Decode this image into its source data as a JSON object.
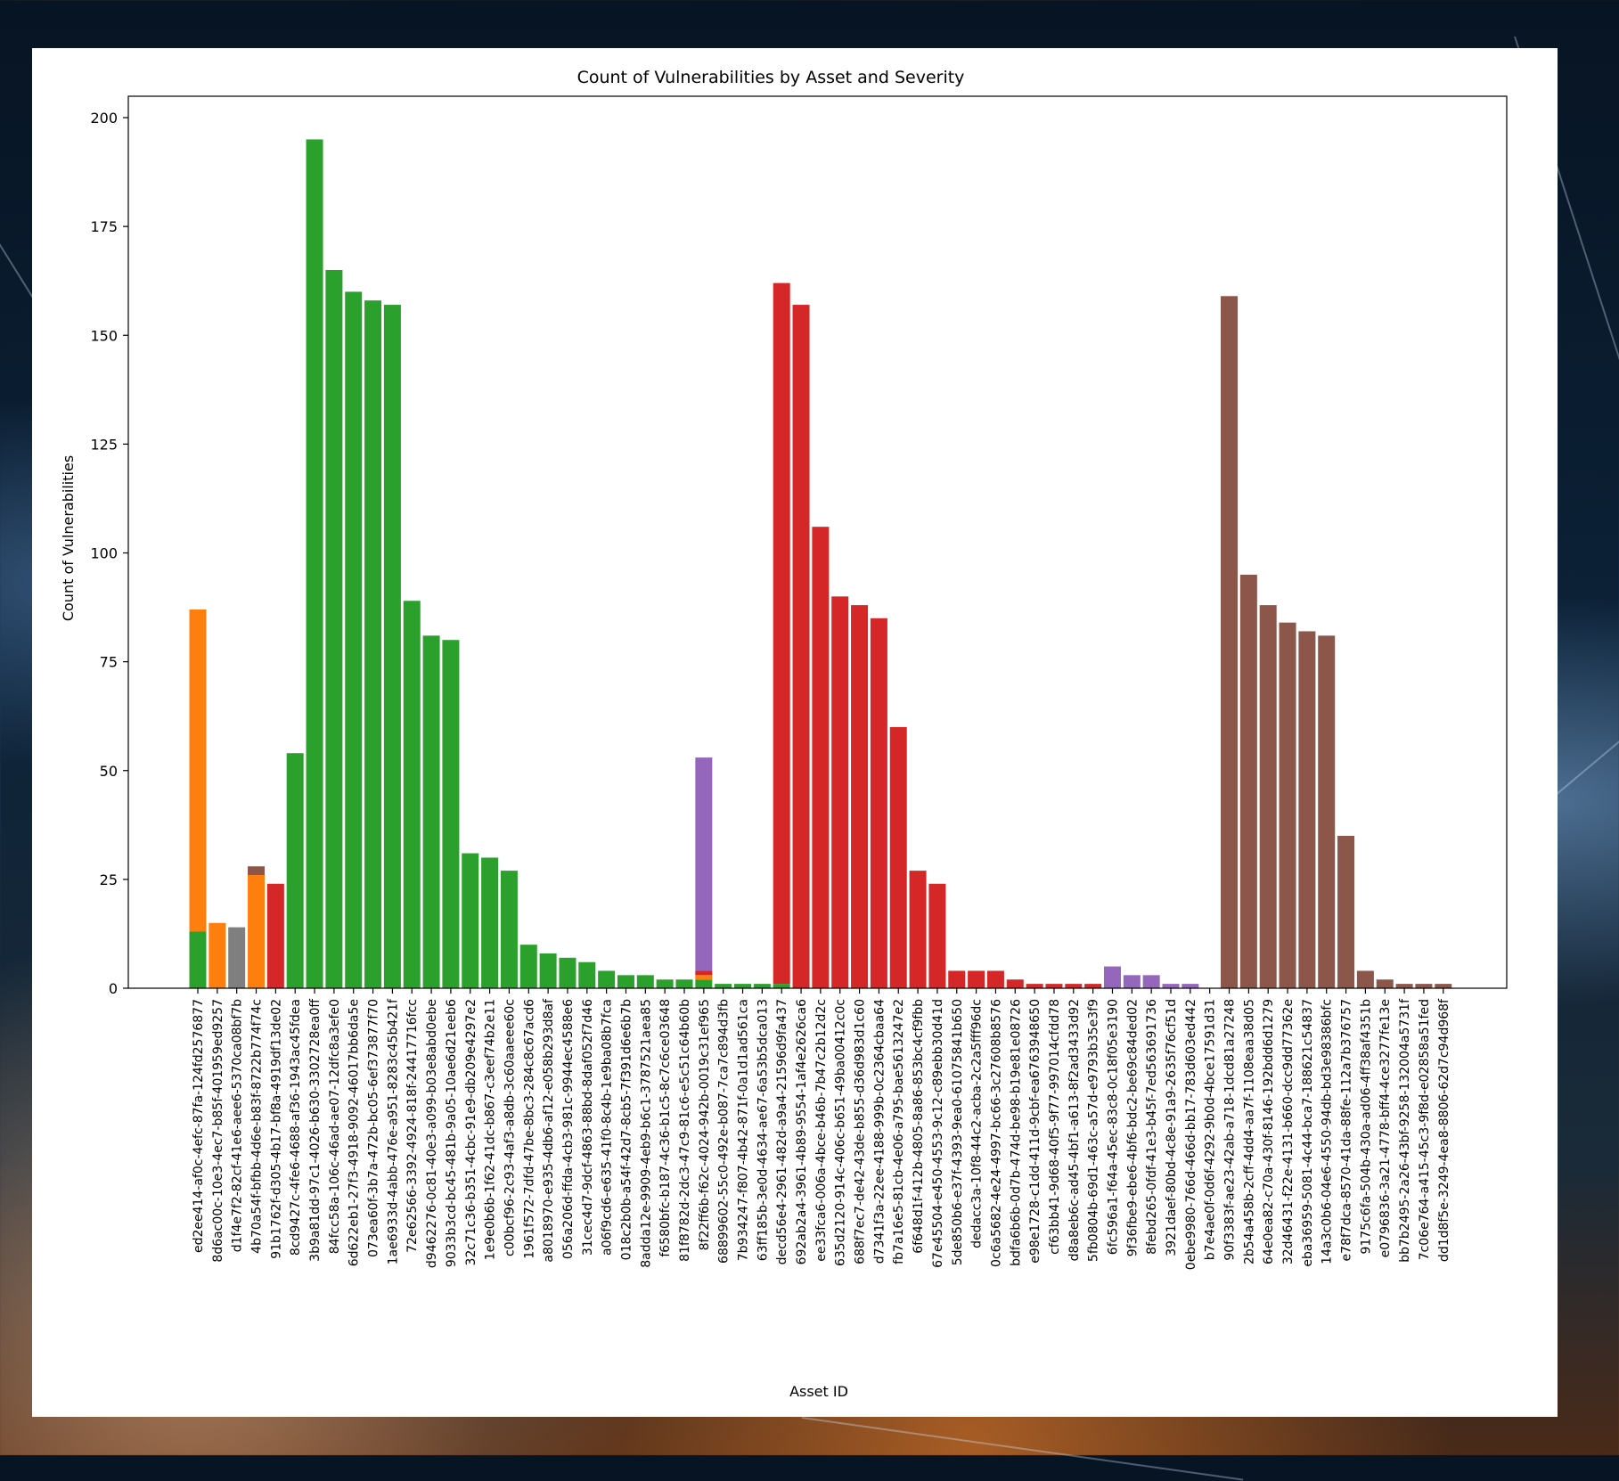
{
  "chart_data": {
    "type": "bar",
    "title": "Count of Vulnerabilities by Asset and Severity",
    "xlabel": "Asset ID",
    "ylabel": "Count of Vulnerabilities",
    "ylim": [
      0,
      200
    ],
    "yticks": [
      0,
      25,
      50,
      75,
      100,
      125,
      150,
      175,
      200
    ],
    "grid": false,
    "legend": "none",
    "categories": [
      "ed2ee414-af0c-4efc-87fa-124fd2576877",
      "8d6ac00c-10e3-4ec7-b85f-401959ed9257",
      "d1f4e7f2-82cf-41e6-aee6-5370ca08bf7b",
      "4b70a54f-bfbb-4d6e-b83f-8722b774f74c",
      "91b1762f-d305-4b17-bf8a-4919df13de02",
      "8cd9427c-4fe6-4688-af36-1943ac45fdea",
      "3b9a81dd-97c1-4026-b630-3302728ea0ff",
      "84fcc58a-106c-46ad-ae07-12dfc8a3efe0",
      "6d622eb1-27f3-4918-9092-46017bb6da5e",
      "073ea60f-3b7a-472b-bc05-6ef373877f70",
      "1ae6933d-4abb-476e-a951-8283c45b421f",
      "72e62566-3392-4924-818f-24417716fcc",
      "d9462276-0c81-40e3-a099-b03e8abd0ebe",
      "9033b3cd-bc45-481b-9a05-10ae6d21eeb6",
      "32c71c36-b351-4cbc-91e9-db209e4297e2",
      "1e9e0b6b-1f62-41dc-b867-c3eef74b2e11",
      "c00bcf96-2c93-4af3-a8db-3c60aaeee60c",
      "1961f572-7dfd-47be-8bc3-284c8c67acd6",
      "a8018970-e935-4db6-af12-e058b293d8af",
      "056a206d-ffda-4cb3-981c-9944ec4588e6",
      "31cec4d7-9dcf-4863-88bd-8daf052f7d46",
      "a06f9cd6-e635-41f0-8c4b-1e9ba08b7fca",
      "018c2b0b-a54f-42d7-8cb5-7f391d6e6b7b",
      "8adda12e-9909-4eb9-b6c1-3787521aea85",
      "f6580bfc-b187-4c36-b1c5-8c7c6ce03648",
      "81f8782d-2dc3-47c9-81c6-e5c51c64b60b",
      "8f22ff6b-f62c-4024-942b-0019c31ef965",
      "68899602-55c0-492e-b087-7ca7c894d3fb",
      "7b934247-f807-4b42-871f-0a1d1ad561ca",
      "63ff185b-3e0d-4634-ae67-6a53b5dca013",
      "decd56e4-2961-482d-a9a4-21596d9fa437",
      "692ab2a4-3961-4b89-9554-1af4e2626ca6",
      "ee33fca6-006a-4bce-b46b-7b47c2b12d2c",
      "635d2120-914c-406c-b651-49ba00412c0c",
      "688f7ec7-de42-43de-b855-d36d983d1c60",
      "d7341f3a-22ee-4188-999b-0c2364cbaa64",
      "fb7a16e5-81cb-4e06-a795-bae5613247e2",
      "6f648d1f-412b-4805-8a86-853bc4cf9fbb",
      "67e45504-e450-4553-9c12-c89ebb30d41d",
      "5de850b6-e37f-4393-9ea0-61075841b650",
      "dedacc3a-10f8-44c2-acba-2c2a5fff96dc",
      "0c6a5682-4e24-4997-bc66-3c27608b8576",
      "bdfa6b6b-0d7b-474d-be98-b19e81e08726",
      "e98e1728-c1dd-411d-9cbf-ea6763948650",
      "cf63bb41-9d68-40f5-9f77-997014cfdd78",
      "d8a8eb6c-ad45-4bf1-a613-8f2ad3433d92",
      "5fb0804b-69d1-463c-a57d-e9793b35e3f9",
      "6fc596a1-f64a-45ec-83c8-0c18f05e3190",
      "9f36fbe9-ebe6-4bf6-bdc2-be69c84ded02",
      "8febd265-0fdf-41e3-b45f-7ed563691736",
      "3921daef-80bd-4c8e-91a9-2635f76cf51d",
      "0ebe9980-766d-466d-bb17-783d603ed442",
      "b7e4ae0f-0d6f-4292-9b0d-4bce17591d31",
      "90f3383f-ae23-42ab-a718-1dcd81a27248",
      "2b54a458b-2cff-4dd4-aa7f-1108eaa38d05",
      "64e0ea82-c70a-430f-8146-192bdd6d1279",
      "32d46431-f22e-4131-b660-dcc9dd77362e",
      "eba36959-5081-4c44-bca7-188621c54837",
      "14a3c0b6-04e6-4550-94db-bd3e98386bfc",
      "e78f7dca-8570-41da-88fe-112a7b376757",
      "9175c6fa-504b-430a-ad06-4ff38af4351b",
      "e0796836-3a21-4778-bff4-4ce3277fe13e",
      "bb7b2495-2a26-43bf-9258-132004a5731f",
      "7c06e764-a415-45c3-9f8d-e02858a51fed",
      "dd1d8f5e-3249-4ea8-8806-62d7c94d968f"
    ],
    "series_colors": [
      "#2ca02c",
      "#ff7f0e",
      "#7f7f7f",
      "#8c564b",
      "#d62728",
      "#9467bd"
    ],
    "series": [
      {
        "values": [
          13,
          0,
          0,
          0,
          0,
          54,
          195,
          165,
          160,
          158,
          157,
          89,
          81,
          80,
          31,
          30,
          27,
          10,
          8,
          7,
          6,
          4,
          3,
          3,
          2,
          2,
          2,
          1,
          1,
          1,
          1,
          0,
          0,
          0,
          0,
          0,
          0,
          0,
          0,
          0,
          0,
          0,
          0,
          0,
          0,
          0,
          0,
          0,
          0,
          0,
          0,
          0,
          0,
          0,
          0,
          0,
          0,
          0,
          0,
          0,
          0,
          0,
          0,
          0,
          0
        ]
      },
      {
        "values": [
          74,
          15,
          0,
          26,
          0,
          0,
          0,
          0,
          0,
          0,
          0,
          0,
          0,
          0,
          0,
          0,
          0,
          0,
          0,
          0,
          0,
          0,
          0,
          0,
          0,
          0,
          1,
          0,
          0,
          0,
          0,
          0,
          0,
          0,
          0,
          0,
          0,
          0,
          0,
          0,
          0,
          0,
          0,
          0,
          0,
          0,
          0,
          0,
          0,
          0,
          0,
          0,
          0,
          0,
          0,
          0,
          0,
          0,
          0,
          0,
          0,
          0,
          0,
          0,
          0
        ]
      },
      {
        "values": [
          0,
          0,
          14,
          0,
          0,
          0,
          0,
          0,
          0,
          0,
          0,
          0,
          0,
          0,
          0,
          0,
          0,
          0,
          0,
          0,
          0,
          0,
          0,
          0,
          0,
          0,
          0,
          0,
          0,
          0,
          0,
          0,
          0,
          0,
          0,
          0,
          0,
          0,
          0,
          0,
          0,
          0,
          0,
          0,
          0,
          0,
          0,
          0,
          0,
          0,
          0,
          0,
          0,
          0,
          0,
          0,
          0,
          0,
          0,
          0,
          0,
          0,
          0,
          0,
          0
        ]
      },
      {
        "values": [
          0,
          0,
          0,
          2,
          0,
          0,
          0,
          0,
          0,
          0,
          0,
          0,
          0,
          0,
          0,
          0,
          0,
          0,
          0,
          0,
          0,
          0,
          0,
          0,
          0,
          0,
          0,
          0,
          0,
          0,
          0,
          0,
          0,
          0,
          0,
          0,
          0,
          0,
          0,
          0,
          0,
          0,
          0,
          0,
          0,
          0,
          0,
          0,
          0,
          0,
          0,
          0,
          0,
          159,
          95,
          88,
          84,
          82,
          81,
          35,
          4,
          2,
          1,
          1,
          1
        ]
      },
      {
        "values": [
          0,
          0,
          0,
          0,
          24,
          0,
          0,
          0,
          0,
          0,
          0,
          0,
          0,
          0,
          0,
          0,
          0,
          0,
          0,
          0,
          0,
          0,
          0,
          0,
          0,
          0,
          1,
          0,
          0,
          0,
          161,
          157,
          106,
          90,
          88,
          85,
          60,
          27,
          24,
          4,
          4,
          4,
          2,
          1,
          1,
          1,
          1,
          0,
          0,
          0,
          0,
          0,
          0,
          0,
          0,
          0,
          0,
          0,
          0,
          0,
          0,
          0,
          0,
          0,
          0
        ]
      },
      {
        "values": [
          0,
          0,
          0,
          0,
          0,
          0,
          0,
          0,
          0,
          0,
          0,
          0,
          0,
          0,
          0,
          0,
          0,
          0,
          0,
          0,
          0,
          0,
          0,
          0,
          0,
          0,
          49,
          0,
          0,
          0,
          0,
          0,
          0,
          0,
          0,
          0,
          0,
          0,
          0,
          0,
          0,
          0,
          0,
          0,
          0,
          0,
          0,
          5,
          3,
          3,
          1,
          1,
          0,
          0,
          0,
          0,
          0,
          0,
          0,
          0,
          0,
          0,
          0,
          0,
          0
        ]
      }
    ]
  },
  "background": {
    "theme": "dark-blue-light-streaks"
  }
}
